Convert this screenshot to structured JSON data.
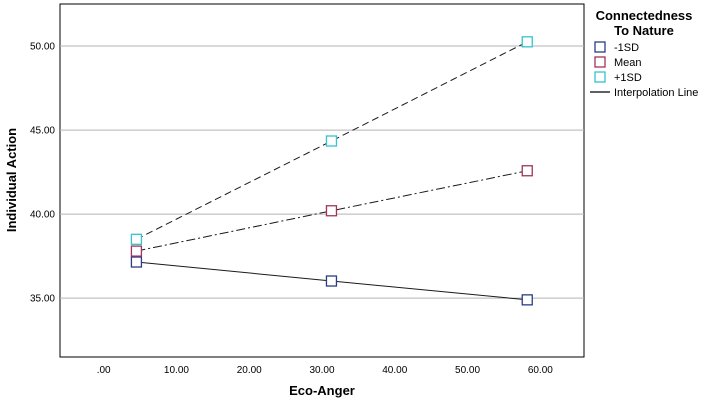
{
  "chart_data": {
    "type": "line",
    "xlabel": "Eco-Anger",
    "ylabel": "Individual Action",
    "xlim": [
      -6,
      66
    ],
    "ylim": [
      31.5,
      52.5
    ],
    "x_ticks": [
      0,
      10,
      20,
      30,
      40,
      50,
      60
    ],
    "x_tick_labels": [
      ".00",
      "10.00",
      "20.00",
      "30.00",
      "40.00",
      "50.00",
      "60.00"
    ],
    "y_ticks": [
      35,
      40,
      45,
      50
    ],
    "y_tick_labels": [
      "35.00",
      "40.00",
      "45.00",
      "50.00"
    ],
    "grid": "horizontal",
    "legend": {
      "title": "Connectedness To Nature",
      "title_lines": [
        "Connectedness",
        "To Nature"
      ],
      "position": "right",
      "entries": [
        "-1SD",
        "Mean",
        "+1SD",
        "Interpolation Line"
      ]
    },
    "series": [
      {
        "name": "-1SD",
        "color": "#2b3d86",
        "line_style": "solid",
        "x": [
          4.5,
          31.3,
          58.2
        ],
        "y": [
          37.15,
          36.02,
          34.9
        ]
      },
      {
        "name": "Mean",
        "color": "#a0335e",
        "line_style": "dash-dot",
        "x": [
          4.5,
          31.3,
          58.2
        ],
        "y": [
          37.8,
          40.2,
          42.58
        ]
      },
      {
        "name": "+1SD",
        "color": "#33c4cc",
        "line_style": "dashed",
        "x": [
          4.5,
          31.3,
          58.2
        ],
        "y": [
          38.5,
          44.35,
          50.25
        ]
      }
    ],
    "interpolation_line_color": "#000000"
  }
}
